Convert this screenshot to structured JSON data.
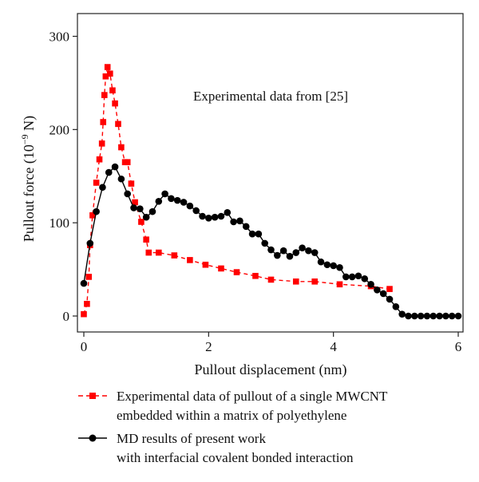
{
  "chart_data": {
    "type": "line",
    "title": "",
    "xlabel": "Pullout displacement (nm)",
    "ylabel": {
      "base": "Pullout force (10",
      "exp": "−9",
      "unit": " N)"
    },
    "xlim": [
      0,
      6
    ],
    "ylim": [
      0,
      320
    ],
    "xticks": [
      "0",
      "2",
      "4",
      "6"
    ],
    "yticks": [
      "0",
      "100",
      "200",
      "300"
    ],
    "xtick_values": [
      0,
      2,
      4,
      6
    ],
    "ytick_values": [
      0,
      100,
      200,
      300
    ],
    "grid": false,
    "legend_position": "bottom",
    "annotation": "Experimental data from [25]",
    "series": [
      {
        "name": [
          "Experimental data of pullout of a single MWCNT",
          "embedded within a matrix of polyethylene"
        ],
        "color": "#ff0000",
        "line_style": "dashed",
        "marker": "square",
        "x": [
          0.0,
          0.05,
          0.08,
          0.1,
          0.14,
          0.2,
          0.25,
          0.29,
          0.31,
          0.33,
          0.35,
          0.38,
          0.42,
          0.46,
          0.5,
          0.55,
          0.6,
          0.66,
          0.7,
          0.76,
          0.82,
          0.92,
          1.0,
          1.04,
          1.2,
          1.45,
          1.7,
          1.95,
          2.2,
          2.45,
          2.75,
          3.0,
          3.4,
          3.7,
          4.1,
          4.6,
          4.9
        ],
        "y": [
          2,
          13,
          42,
          76,
          108,
          143,
          168,
          185,
          208,
          237,
          257,
          267,
          260,
          242,
          228,
          206,
          181,
          165,
          165,
          142,
          122,
          101,
          82,
          68,
          68,
          65,
          60,
          55,
          51,
          47,
          43,
          39,
          37,
          37,
          34,
          32,
          29
        ]
      },
      {
        "name": [
          "MD results of present work",
          "with interfacial covalent bonded interaction"
        ],
        "color": "#000000",
        "line_style": "solid",
        "marker": "circle",
        "x": [
          0.0,
          0.1,
          0.2,
          0.3,
          0.4,
          0.5,
          0.6,
          0.7,
          0.8,
          0.9,
          1.0,
          1.1,
          1.2,
          1.3,
          1.4,
          1.5,
          1.6,
          1.7,
          1.8,
          1.9,
          2.0,
          2.1,
          2.2,
          2.3,
          2.4,
          2.5,
          2.6,
          2.7,
          2.8,
          2.9,
          3.0,
          3.1,
          3.2,
          3.3,
          3.4,
          3.5,
          3.6,
          3.7,
          3.8,
          3.9,
          4.0,
          4.1,
          4.2,
          4.3,
          4.4,
          4.5,
          4.6,
          4.7,
          4.8,
          4.9,
          5.0,
          5.1,
          5.2,
          5.3,
          5.4,
          5.5,
          5.6,
          5.7,
          5.8,
          5.9,
          6.0
        ],
        "y": [
          35,
          78,
          112,
          138,
          154,
          160,
          147,
          131,
          116,
          115,
          106,
          112,
          123,
          131,
          126,
          124,
          122,
          118,
          113,
          107,
          105,
          106,
          107,
          111,
          101,
          102,
          96,
          88,
          88,
          78,
          71,
          65,
          70,
          64,
          68,
          73,
          70,
          68,
          58,
          55,
          54,
          52,
          42,
          42,
          43,
          40,
          34,
          28,
          24,
          18,
          10,
          2,
          0,
          0,
          0,
          0,
          0,
          0,
          0,
          0,
          0
        ]
      }
    ]
  }
}
